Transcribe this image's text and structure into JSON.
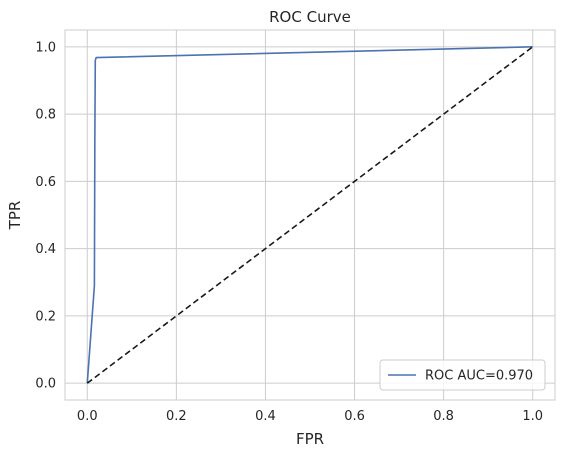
{
  "chart_data": {
    "type": "line",
    "title": "ROC Curve",
    "xlabel": "FPR",
    "ylabel": "TPR",
    "xlim": [
      -0.05,
      1.05
    ],
    "ylim": [
      -0.05,
      1.05
    ],
    "xticks": [
      0.0,
      0.2,
      0.4,
      0.6,
      0.8,
      1.0
    ],
    "xtick_labels": [
      "0.0",
      "0.2",
      "0.4",
      "0.6",
      "0.8",
      "1.0"
    ],
    "yticks": [
      0.0,
      0.2,
      0.4,
      0.6,
      0.8,
      1.0
    ],
    "ytick_labels": [
      "0.0",
      "0.2",
      "0.4",
      "0.6",
      "0.8",
      "1.0"
    ],
    "grid": true,
    "legend_position": "lower-right",
    "series": [
      {
        "name": "ROC AUC=0.970",
        "style": "solid",
        "color": "#4c72b0",
        "x": [
          0.0,
          0.016,
          0.017,
          0.018,
          0.02,
          1.0
        ],
        "y": [
          0.0,
          0.29,
          0.73,
          0.96,
          0.968,
          1.0
        ]
      },
      {
        "style": "dashed",
        "color": "#1a1a1a",
        "x": [
          0.0,
          1.0
        ],
        "y": [
          0.0,
          1.0
        ]
      }
    ]
  },
  "colors": {
    "background": "#ffffff",
    "grid": "#cccccc",
    "spine": "#cccccc",
    "text": "#262626"
  }
}
